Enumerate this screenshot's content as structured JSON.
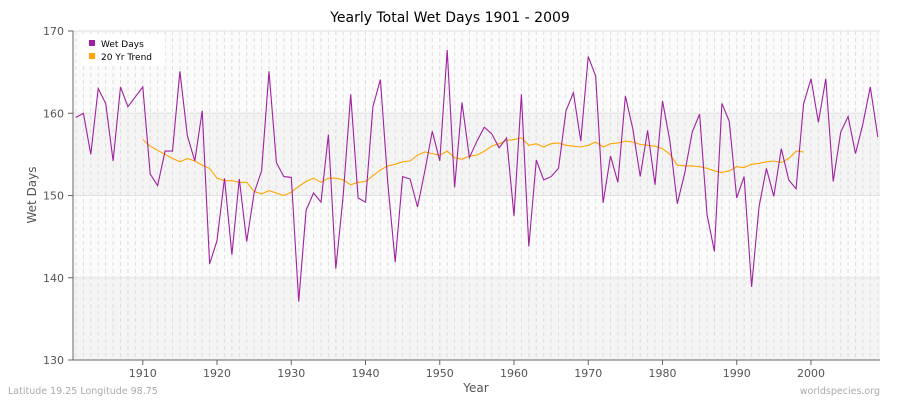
{
  "chart_data": {
    "type": "line",
    "title": "Yearly Total Wet Days 1901 - 2009",
    "xlabel": "Year",
    "ylabel": "Wet Days",
    "xlim": [
      1901,
      2009
    ],
    "ylim": [
      130,
      170
    ],
    "x_ticks": [
      1910,
      1920,
      1930,
      1940,
      1950,
      1960,
      1970,
      1980,
      1990,
      2000
    ],
    "y_ticks": [
      130,
      140,
      150,
      160,
      170
    ],
    "grid": true,
    "legend_position": "top-left",
    "series": [
      {
        "name": "Wet Days",
        "color": "#a020a0",
        "x_start": 1901,
        "values": [
          159.5,
          160,
          155,
          163,
          161.2,
          154.2,
          163.2,
          160.8,
          162,
          163.2,
          152.6,
          151.2,
          155.4,
          155.4,
          165.1,
          157.3,
          154.2,
          160.3,
          141.7,
          144.5,
          152.1,
          142.8,
          152,
          144.4,
          150.3,
          153,
          165.1,
          154,
          152.3,
          152.2,
          137.1,
          148.2,
          150.3,
          149.2,
          157.4,
          141.1,
          150,
          162.3,
          149.7,
          149.2,
          160.8,
          164.1,
          151.5,
          141.9,
          152.3,
          152,
          148.6,
          153,
          157.8,
          154.2,
          167.7,
          151,
          161.3,
          154.6,
          156.6,
          158.3,
          157.5,
          155.8,
          157,
          147.5,
          162.3,
          143.8,
          154.3,
          151.9,
          152.3,
          153.3,
          160.3,
          162.5,
          156.6,
          166.9,
          164.5,
          149.1,
          154.8,
          151.6,
          162.1,
          158.1,
          152.3,
          157.9,
          151.3,
          161.5,
          156.6,
          149,
          152.7,
          157.7,
          159.9,
          147.7,
          143.2,
          161.2,
          159,
          149.7,
          152.3,
          138.9,
          148.6,
          153.3,
          149.9,
          155.7,
          151.9,
          150.8,
          161.1,
          164.2,
          158.9,
          164.2,
          151.7,
          157.7,
          159.6,
          155.1,
          158.7,
          163.2,
          157.1
        ]
      },
      {
        "name": "20 Yr Trend",
        "color": "#ffa500",
        "x_start": 1910,
        "values": [
          156.8,
          156,
          155.5,
          155,
          154.5,
          154.1,
          154.5,
          154.2,
          153.7,
          153.3,
          152.1,
          151.8,
          151.8,
          151.6,
          151.6,
          150.5,
          150.2,
          150.6,
          150.3,
          150,
          150.4,
          151.1,
          151.7,
          152.1,
          151.6,
          152.1,
          152.1,
          151.9,
          151.3,
          151.6,
          151.7,
          152.4,
          153.1,
          153.6,
          153.8,
          154.1,
          154.2,
          154.9,
          155.3,
          155.1,
          154.9,
          155.4,
          154.6,
          154.4,
          154.8,
          154.9,
          155.4,
          156,
          156.3,
          156.7,
          156.8,
          157,
          156.1,
          156.3,
          155.9,
          156.3,
          156.4,
          156.1,
          156,
          155.9,
          156.1,
          156.5,
          155.9,
          156.3,
          156.4,
          156.6,
          156.5,
          156.2,
          156.1,
          156,
          155.7,
          155,
          153.7,
          153.6,
          153.6,
          153.5,
          153.3,
          153,
          152.8,
          153,
          153.5,
          153.4,
          153.8,
          153.9,
          154.1,
          154.2,
          154,
          154.5,
          155.4,
          155.3
        ]
      }
    ]
  },
  "footer": {
    "location": "Latitude 19.25 Longitude 98.75",
    "source": "worldspecies.org"
  }
}
